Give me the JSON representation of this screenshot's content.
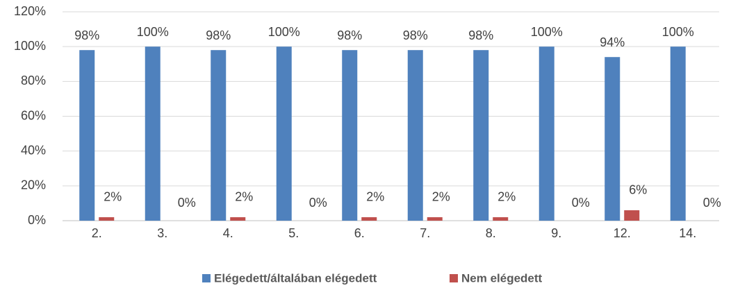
{
  "chart_data": {
    "type": "bar",
    "categories": [
      "2.",
      "3.",
      "4.",
      "5.",
      "6.",
      "7.",
      "8.",
      "9.",
      "12.",
      "14."
    ],
    "series": [
      {
        "name": "Elégedett/általában elégedett",
        "color": "#4f81bd",
        "values": [
          98,
          100,
          98,
          100,
          98,
          98,
          98,
          100,
          94,
          100
        ],
        "value_labels": [
          "98%",
          "100%",
          "98%",
          "100%",
          "98%",
          "98%",
          "98%",
          "100%",
          "94%",
          "100%"
        ]
      },
      {
        "name": "Nem elégedett",
        "color": "#c0504d",
        "values": [
          2,
          0,
          2,
          0,
          2,
          2,
          2,
          0,
          6,
          0
        ],
        "value_labels": [
          "2%",
          "0%",
          "2%",
          "0%",
          "2%",
          "2%",
          "2%",
          "0%",
          "6%",
          "0%"
        ]
      }
    ],
    "ylim": [
      0,
      120
    ],
    "yticks": [
      {
        "value": 0,
        "label": "0%"
      },
      {
        "value": 20,
        "label": "20%"
      },
      {
        "value": 40,
        "label": "40%"
      },
      {
        "value": 60,
        "label": "60%"
      },
      {
        "value": 80,
        "label": "80%"
      },
      {
        "value": 100,
        "label": "100%"
      },
      {
        "value": 120,
        "label": "120%"
      }
    ],
    "grid": true,
    "legend": "bottom"
  }
}
